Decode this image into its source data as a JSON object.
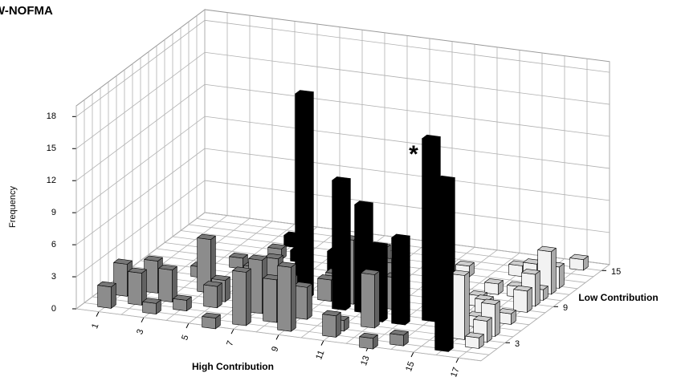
{
  "chart_data": {
    "type": "bar3d",
    "title": "W-NOFMA",
    "y_label": "Frequency",
    "x_label": "High Contribution",
    "z_label": "Low Contribution",
    "annotation": "*",
    "xlim": [
      0,
      18
    ],
    "xticks": [
      1,
      3,
      5,
      7,
      9,
      11,
      13,
      15,
      17
    ],
    "zlim": [
      0,
      16
    ],
    "zticks": [
      3,
      9,
      15
    ],
    "ylim": [
      0,
      19
    ],
    "yticks": [
      0,
      3,
      6,
      9,
      12,
      15,
      18
    ],
    "grid": true,
    "series": [
      {
        "color": "#8c8c8c",
        "x": [
          1,
          1,
          2,
          2,
          3,
          3,
          4,
          4,
          5,
          5,
          5,
          6,
          7,
          7,
          7,
          8,
          8,
          9,
          9,
          9,
          10,
          10,
          11,
          11,
          12,
          12,
          13,
          14,
          9,
          5,
          3,
          4,
          10,
          9,
          11
        ],
        "z": [
          1,
          3,
          2,
          4,
          1,
          3,
          2,
          5,
          3,
          4,
          8,
          0,
          1,
          3,
          5,
          4,
          2,
          1,
          3,
          6,
          6,
          8,
          1,
          2,
          3,
          6,
          0,
          1,
          9,
          11,
          7,
          9,
          10,
          7,
          8
        ],
        "values": [
          2,
          3,
          3,
          3,
          1,
          3,
          1,
          5,
          2,
          2,
          1,
          1,
          5,
          5,
          4,
          3,
          4,
          6,
          3,
          2,
          6,
          1,
          2,
          1,
          5,
          3,
          1,
          1,
          2,
          1,
          1,
          1,
          3,
          2,
          3
        ]
      },
      {
        "color": "#000000",
        "x": [
          5,
          6,
          8,
          9,
          8,
          10,
          11,
          12,
          13,
          14,
          15,
          16
        ],
        "z": [
          13,
          11,
          10,
          7,
          6,
          5,
          5,
          4,
          4,
          5,
          4,
          1
        ],
        "values": [
          1,
          1,
          2,
          1,
          19,
          12,
          10,
          7,
          8,
          17,
          14,
          8
        ]
      },
      {
        "color": "#f2f2f2",
        "x": [
          17,
          17,
          17,
          17,
          17,
          17,
          17,
          17,
          17,
          16,
          16,
          15,
          16,
          16,
          15,
          13,
          15,
          16,
          17
        ],
        "z": [
          2,
          3,
          4,
          6,
          8,
          9,
          10,
          12,
          11,
          3,
          5,
          8,
          10,
          12,
          10,
          12,
          13,
          6,
          15
        ],
        "values": [
          1,
          2,
          3,
          1,
          2,
          3,
          1,
          2,
          4,
          6,
          1,
          1,
          1,
          2,
          1,
          1,
          1,
          2,
          1
        ]
      }
    ]
  }
}
